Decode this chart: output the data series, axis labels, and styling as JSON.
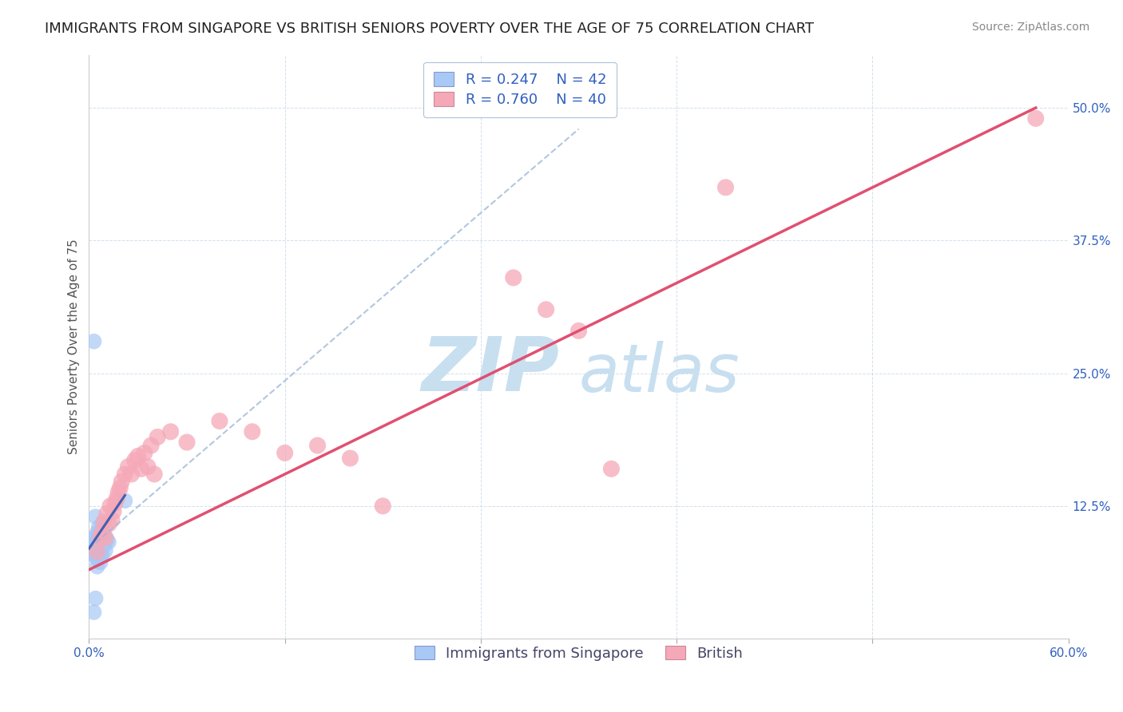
{
  "title": "IMMIGRANTS FROM SINGAPORE VS BRITISH SENIORS POVERTY OVER THE AGE OF 75 CORRELATION CHART",
  "source": "Source: ZipAtlas.com",
  "ylabel": "Seniors Poverty Over the Age of 75",
  "xlim": [
    0.0,
    0.6
  ],
  "ylim": [
    0.0,
    0.55
  ],
  "yticks": [
    0.0,
    0.125,
    0.25,
    0.375,
    0.5
  ],
  "ytick_labels": [
    "",
    "12.5%",
    "25.0%",
    "37.5%",
    "50.0%"
  ],
  "xticks": [
    0.0,
    0.12,
    0.24,
    0.36,
    0.48,
    0.6
  ],
  "xtick_labels": [
    "0.0%",
    "",
    "",
    "",
    "",
    "60.0%"
  ],
  "title_fontsize": 13,
  "source_fontsize": 10,
  "axis_label_fontsize": 11,
  "tick_fontsize": 11,
  "legend_fontsize": 13,
  "watermark_zip": "ZIP",
  "watermark_atlas": "atlas",
  "watermark_color_zip": "#c8dff0",
  "watermark_color_atlas": "#c8dff0",
  "singapore_color": "#a8c8f5",
  "british_color": "#f5a8b8",
  "singapore_line_color": "#4060b0",
  "british_line_color": "#e05070",
  "singapore_R": 0.247,
  "singapore_N": 42,
  "british_R": 0.76,
  "british_N": 40,
  "legend_label_color": "#3060c0",
  "tick_label_color": "#3060c0",
  "singapore_points": [
    [
      0.002,
      0.08
    ],
    [
      0.003,
      0.088
    ],
    [
      0.003,
      0.095
    ],
    [
      0.004,
      0.092
    ],
    [
      0.004,
      0.085
    ],
    [
      0.004,
      0.078
    ],
    [
      0.005,
      0.1
    ],
    [
      0.005,
      0.095
    ],
    [
      0.005,
      0.09
    ],
    [
      0.005,
      0.083
    ],
    [
      0.005,
      0.075
    ],
    [
      0.005,
      0.068
    ],
    [
      0.006,
      0.105
    ],
    [
      0.006,
      0.098
    ],
    [
      0.006,
      0.093
    ],
    [
      0.006,
      0.088
    ],
    [
      0.006,
      0.082
    ],
    [
      0.006,
      0.076
    ],
    [
      0.007,
      0.102
    ],
    [
      0.007,
      0.096
    ],
    [
      0.007,
      0.09
    ],
    [
      0.007,
      0.085
    ],
    [
      0.007,
      0.078
    ],
    [
      0.007,
      0.072
    ],
    [
      0.008,
      0.108
    ],
    [
      0.008,
      0.098
    ],
    [
      0.008,
      0.092
    ],
    [
      0.008,
      0.085
    ],
    [
      0.008,
      0.079
    ],
    [
      0.009,
      0.1
    ],
    [
      0.009,
      0.094
    ],
    [
      0.009,
      0.088
    ],
    [
      0.01,
      0.096
    ],
    [
      0.01,
      0.09
    ],
    [
      0.01,
      0.083
    ],
    [
      0.011,
      0.093
    ],
    [
      0.012,
      0.091
    ],
    [
      0.003,
      0.28
    ],
    [
      0.004,
      0.115
    ],
    [
      0.022,
      0.13
    ],
    [
      0.004,
      0.038
    ],
    [
      0.003,
      0.025
    ]
  ],
  "british_points": [
    [
      0.005,
      0.082
    ],
    [
      0.007,
      0.095
    ],
    [
      0.008,
      0.1
    ],
    [
      0.009,
      0.11
    ],
    [
      0.01,
      0.095
    ],
    [
      0.011,
      0.118
    ],
    [
      0.012,
      0.108
    ],
    [
      0.013,
      0.125
    ],
    [
      0.014,
      0.112
    ],
    [
      0.015,
      0.12
    ],
    [
      0.016,
      0.128
    ],
    [
      0.017,
      0.132
    ],
    [
      0.018,
      0.138
    ],
    [
      0.019,
      0.142
    ],
    [
      0.02,
      0.148
    ],
    [
      0.022,
      0.155
    ],
    [
      0.024,
      0.162
    ],
    [
      0.026,
      0.155
    ],
    [
      0.028,
      0.168
    ],
    [
      0.03,
      0.172
    ],
    [
      0.032,
      0.16
    ],
    [
      0.034,
      0.175
    ],
    [
      0.036,
      0.162
    ],
    [
      0.038,
      0.182
    ],
    [
      0.04,
      0.155
    ],
    [
      0.042,
      0.19
    ],
    [
      0.05,
      0.195
    ],
    [
      0.06,
      0.185
    ],
    [
      0.08,
      0.205
    ],
    [
      0.1,
      0.195
    ],
    [
      0.12,
      0.175
    ],
    [
      0.14,
      0.182
    ],
    [
      0.16,
      0.17
    ],
    [
      0.18,
      0.125
    ],
    [
      0.26,
      0.34
    ],
    [
      0.28,
      0.31
    ],
    [
      0.3,
      0.29
    ],
    [
      0.32,
      0.16
    ],
    [
      0.39,
      0.425
    ],
    [
      0.58,
      0.49
    ]
  ],
  "singapore_line": [
    [
      0.0,
      0.085
    ],
    [
      0.022,
      0.135
    ]
  ],
  "singapore_dashed_line": [
    [
      0.0,
      0.085
    ],
    [
      0.3,
      0.48
    ]
  ],
  "british_line": [
    [
      0.0,
      0.065
    ],
    [
      0.58,
      0.5
    ]
  ]
}
